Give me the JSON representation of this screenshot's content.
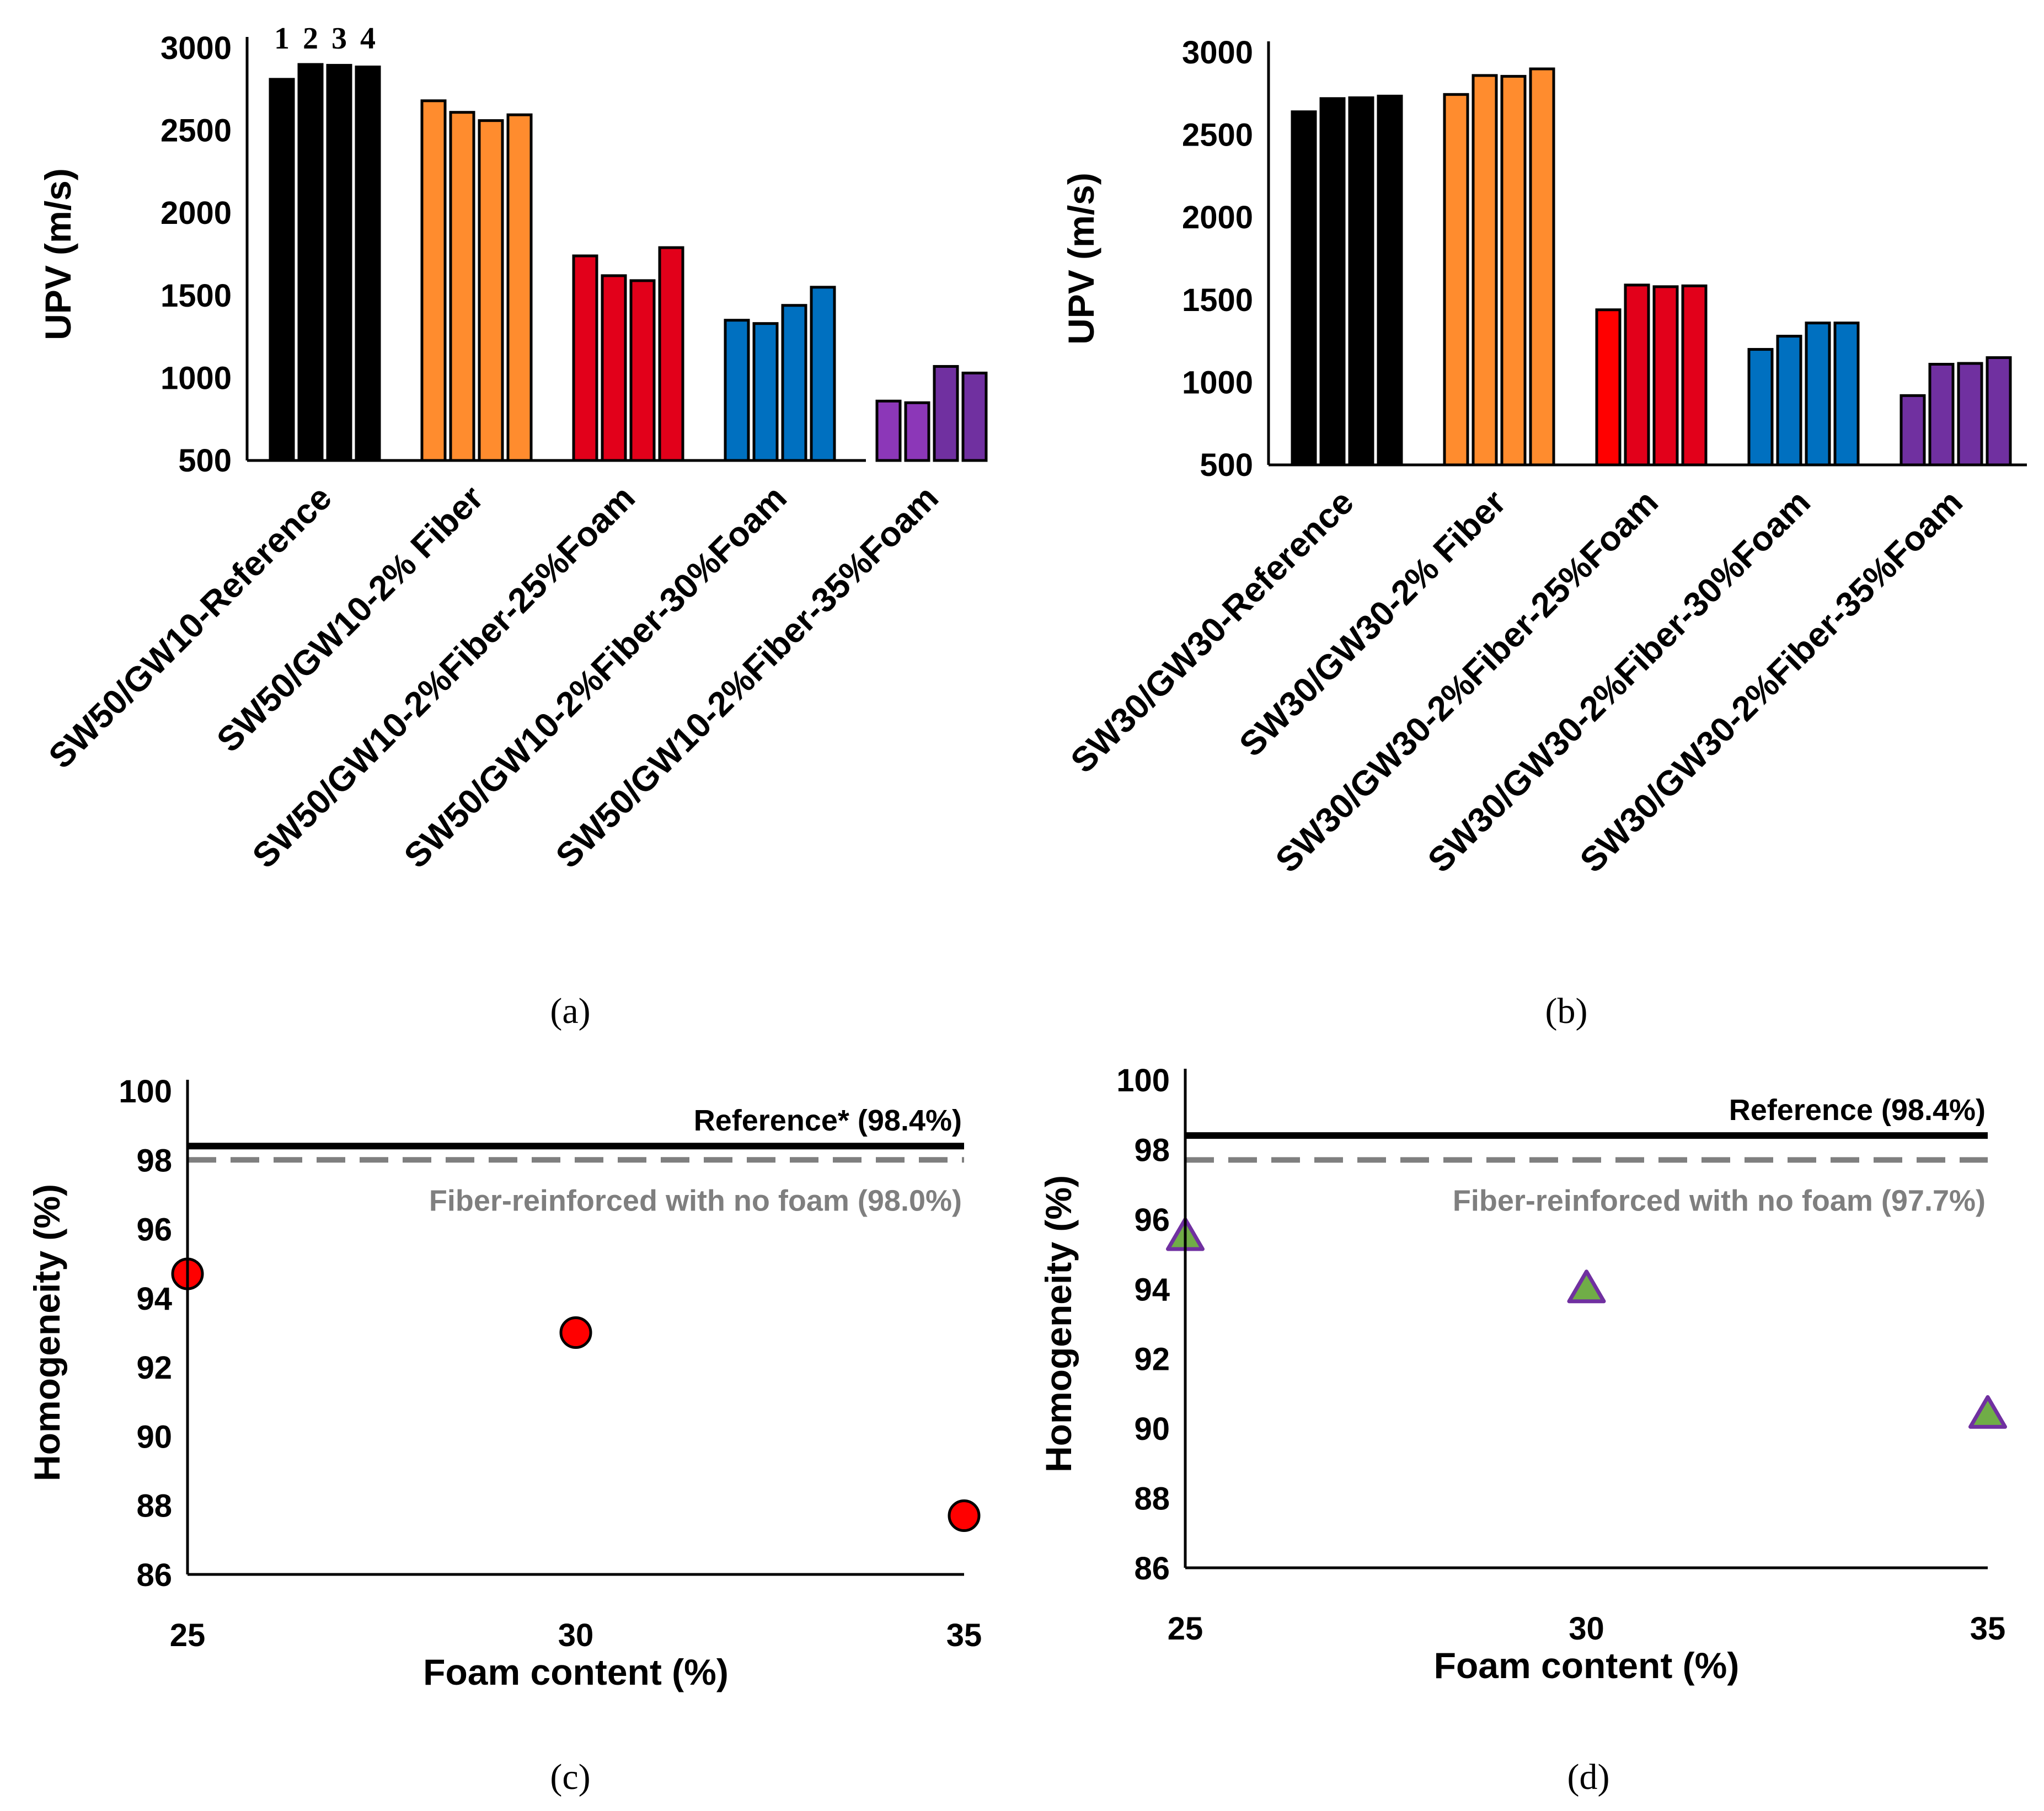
{
  "chart_data": [
    {
      "type": "bar",
      "panel_label": "(a)",
      "ylabel": "UPV (m/s)",
      "ylim": [
        500,
        3000
      ],
      "yticks": [
        "3000",
        "2500",
        "2000",
        "1500",
        "1000",
        "500"
      ],
      "bar_numbers": [
        "1",
        "2",
        "3",
        "4"
      ],
      "categories": [
        "SW50/GW10-Reference",
        "SW50/GW10-2% Fiber",
        "SW50/GW10-2%Fiber-25%Foam",
        "SW50/GW10-2%Fiber-30%Foam",
        "SW50/GW10-2%Fiber-35%Foam"
      ],
      "values": [
        [
          2810,
          2900,
          2895,
          2885
        ],
        [
          2680,
          2610,
          2560,
          2595
        ],
        [
          1740,
          1620,
          1590,
          1790
        ],
        [
          1350,
          1330,
          1440,
          1550
        ],
        [
          860,
          850,
          1070,
          1030
        ]
      ],
      "colors": [
        [
          "#000000",
          "#000000",
          "#000000",
          "#000000"
        ],
        [
          "#ff8c2e",
          "#ff8c2e",
          "#ff8c2e",
          "#ff8c2e"
        ],
        [
          "#e2001a",
          "#e2001a",
          "#e2001a",
          "#e2001a"
        ],
        [
          "#0070c0",
          "#0070c0",
          "#0070c0",
          "#0070c0"
        ],
        [
          "#8c37b8",
          "#8c37b8",
          "#7030a0",
          "#7030a0"
        ]
      ]
    },
    {
      "type": "bar",
      "panel_label": "(b)",
      "ylabel": "UPV (m/s)",
      "ylim": [
        500,
        3000
      ],
      "yticks": [
        "3000",
        "2500",
        "2000",
        "1500",
        "1000",
        "500"
      ],
      "categories": [
        "SW30/GW30-Reference",
        "SW30/GW30-2% Fiber",
        "SW30/GW30-2%Fiber-25%Foam",
        "SW30/GW30-2%Fiber-30%Foam",
        "SW30/GW30-2%Fiber-35%Foam"
      ],
      "values": [
        [
          2640,
          2720,
          2725,
          2735
        ],
        [
          2745,
          2860,
          2855,
          2900
        ],
        [
          1440,
          1590,
          1580,
          1585
        ],
        [
          1200,
          1280,
          1360,
          1360
        ],
        [
          920,
          1110,
          1115,
          1150
        ]
      ],
      "colors": [
        [
          "#000000",
          "#000000",
          "#000000",
          "#000000"
        ],
        [
          "#ff8c2e",
          "#ff8c2e",
          "#ff8c2e",
          "#ff8c2e"
        ],
        [
          "#ff0000",
          "#e2001a",
          "#e2001a",
          "#e2001a"
        ],
        [
          "#0070c0",
          "#0070c0",
          "#0070c0",
          "#0070c0"
        ],
        [
          "#7030a0",
          "#7030a0",
          "#7030a0",
          "#7030a0"
        ]
      ]
    },
    {
      "type": "scatter",
      "panel_label": "(c)",
      "xlabel": "Foam content (%)",
      "ylabel": "Homogeneity (%)",
      "xlim": [
        25,
        35
      ],
      "ylim": [
        86,
        100
      ],
      "xticks": [
        "25",
        "30",
        "35"
      ],
      "yticks": [
        "100",
        "98",
        "96",
        "94",
        "92",
        "90",
        "88",
        "86"
      ],
      "x": [
        25,
        30,
        35
      ],
      "y": [
        94.7,
        93.0,
        87.7
      ],
      "marker": "circle",
      "marker_color": "#ff0000",
      "reference_lines": [
        {
          "name": "Reference* (98.4%)",
          "value": 98.4,
          "style": "solid",
          "color": "#000000"
        },
        {
          "name": "Fiber-reinforced with no foam (98.0%)",
          "value": 98.0,
          "style": "dashed",
          "color": "#7f7f7f"
        }
      ]
    },
    {
      "type": "scatter",
      "panel_label": "(d)",
      "xlabel": "Foam content (%)",
      "ylabel": "Homogeneity (%)",
      "xlim": [
        25,
        35
      ],
      "ylim": [
        86,
        100
      ],
      "xticks": [
        "25",
        "30",
        "35"
      ],
      "yticks": [
        "100",
        "98",
        "96",
        "94",
        "92",
        "90",
        "88",
        "86"
      ],
      "x": [
        25,
        30,
        35
      ],
      "y": [
        95.5,
        94.0,
        90.4
      ],
      "marker": "triangle",
      "marker_color": "#70ad47",
      "marker_edge": "#7030a0",
      "reference_lines": [
        {
          "name": "Reference (98.4%)",
          "value": 98.4,
          "style": "solid",
          "color": "#000000"
        },
        {
          "name": "Fiber-reinforced with no foam (97.7%)",
          "value": 97.7,
          "style": "dashed",
          "color": "#7f7f7f"
        }
      ]
    }
  ]
}
